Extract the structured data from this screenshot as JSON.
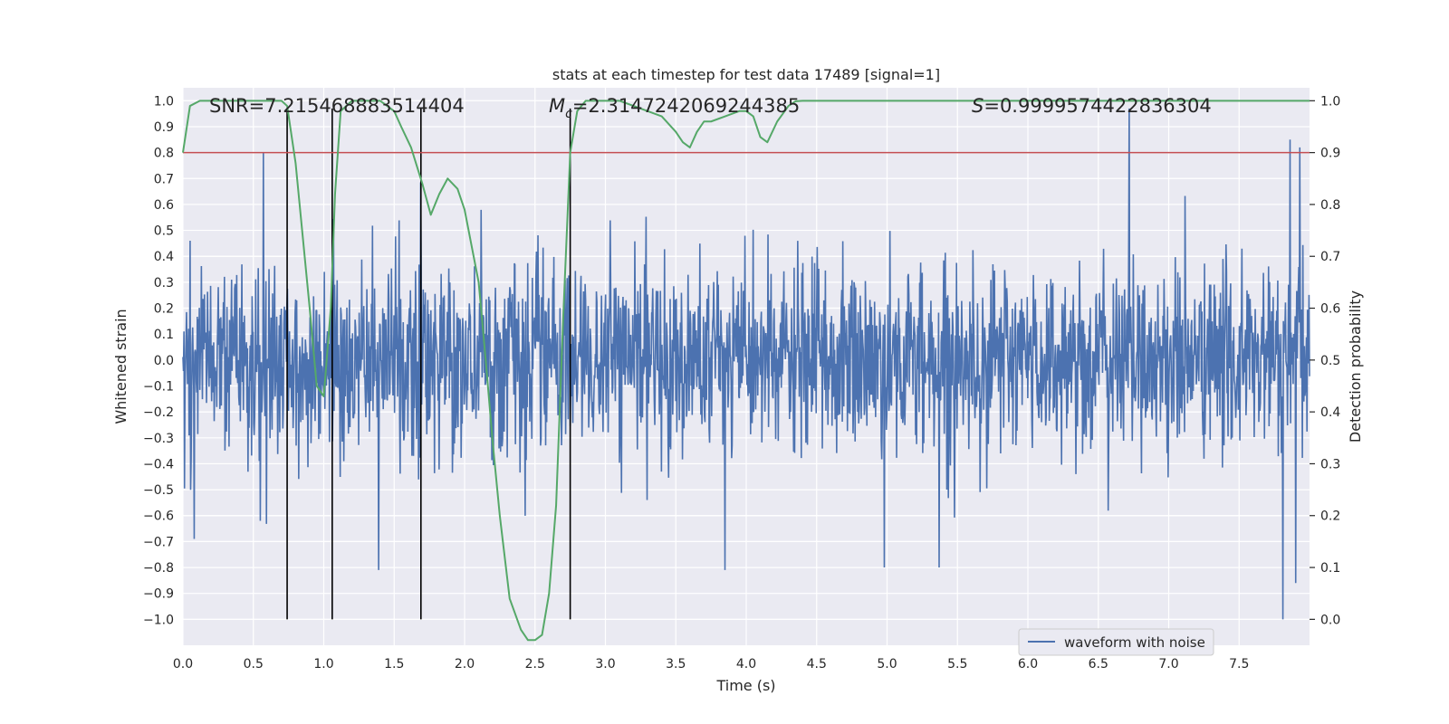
{
  "chart_data": {
    "type": "line",
    "title": "stats at each timestep for test data 17489 [signal=1]",
    "xlabel": "Time (s)",
    "ylabel_left": "Whitened strain",
    "ylabel_right": "Detection probability",
    "xlim": [
      0.0,
      8.0
    ],
    "ylim_left": [
      -1.1,
      1.05
    ],
    "ylim_right": [
      -0.05,
      1.025
    ],
    "x_ticks": [
      "0.0",
      "0.5",
      "1.0",
      "1.5",
      "2.0",
      "2.5",
      "3.0",
      "3.5",
      "4.0",
      "4.5",
      "5.0",
      "5.5",
      "6.0",
      "6.5",
      "7.0",
      "7.5"
    ],
    "y_ticks_left": [
      "1.0",
      "0.9",
      "0.8",
      "0.7",
      "0.6",
      "0.5",
      "0.4",
      "0.3",
      "0.2",
      "0.1",
      "0.0",
      "-0.1",
      "-0.2",
      "-0.3",
      "-0.4",
      "-0.5",
      "-0.6",
      "-0.7",
      "-0.8",
      "-0.9",
      "-1.0"
    ],
    "y_ticks_right": [
      "1.0",
      "0.9",
      "0.8",
      "0.7",
      "0.6",
      "0.5",
      "0.4",
      "0.3",
      "0.2",
      "0.1",
      "0.0"
    ],
    "annotations": {
      "snr": "SNR=7.215468883514404",
      "mc_symbol": "M",
      "mc_sub": "c",
      "mc_value": "=2.3147242069244385",
      "s_symbol": "S",
      "s_value": "=0.9999574422836304"
    },
    "legend": {
      "label": "waveform with noise",
      "placement": "lower-right"
    },
    "threshold": {
      "axis": "right",
      "value": 0.9,
      "color": "#c44e52"
    },
    "vlines": {
      "x": [
        0.74,
        1.06,
        1.69,
        2.75
      ],
      "y_range_left": [
        -1.0,
        0.97
      ],
      "color": "#000000"
    },
    "series": [
      {
        "name": "waveform with noise",
        "axis": "left",
        "color": "#4c72b0",
        "kind": "noise",
        "sigma": 0.18,
        "peaks": [
          {
            "x": 0.57,
            "y": 0.8
          },
          {
            "x": 0.55,
            "y": -0.62
          },
          {
            "x": 0.08,
            "y": -0.69
          },
          {
            "x": 1.39,
            "y": -0.81
          },
          {
            "x": 3.85,
            "y": -0.81
          },
          {
            "x": 4.98,
            "y": -0.8
          },
          {
            "x": 5.37,
            "y": -0.8
          },
          {
            "x": 6.72,
            "y": 0.97
          },
          {
            "x": 7.81,
            "y": -1.0
          },
          {
            "x": 7.86,
            "y": 0.85
          },
          {
            "x": 7.9,
            "y": -0.86
          },
          {
            "x": 7.93,
            "y": 0.82
          }
        ]
      },
      {
        "name": "",
        "axis": "right",
        "color": "#55a868",
        "kind": "line",
        "x": [
          0.0,
          0.05,
          0.12,
          0.3,
          0.5,
          0.6,
          0.7,
          0.74,
          0.8,
          0.9,
          0.95,
          1.0,
          1.05,
          1.08,
          1.12,
          1.2,
          1.3,
          1.4,
          1.45,
          1.5,
          1.55,
          1.62,
          1.7,
          1.76,
          1.82,
          1.88,
          1.95,
          2.0,
          2.05,
          2.1,
          2.15,
          2.2,
          2.25,
          2.32,
          2.4,
          2.45,
          2.5,
          2.55,
          2.6,
          2.65,
          2.7,
          2.75,
          2.8,
          2.86,
          2.9,
          3.0,
          3.1,
          3.2,
          3.3,
          3.4,
          3.5,
          3.55,
          3.6,
          3.65,
          3.7,
          3.75,
          3.85,
          3.95,
          4.0,
          4.05,
          4.1,
          4.15,
          4.22,
          4.3,
          4.35,
          4.4,
          4.5,
          4.7,
          5.0,
          5.3,
          5.7,
          6.0,
          6.5,
          7.0,
          7.5,
          8.0
        ],
        "y": [
          0.9,
          0.99,
          1.0,
          1.0,
          1.0,
          1.0,
          1.0,
          0.99,
          0.88,
          0.6,
          0.45,
          0.43,
          0.6,
          0.82,
          0.98,
          1.0,
          1.0,
          1.0,
          0.99,
          0.98,
          0.95,
          0.91,
          0.84,
          0.78,
          0.82,
          0.85,
          0.83,
          0.79,
          0.72,
          0.65,
          0.5,
          0.34,
          0.2,
          0.04,
          -0.02,
          -0.04,
          -0.04,
          -0.03,
          0.05,
          0.22,
          0.58,
          0.9,
          0.98,
          1.0,
          1.0,
          1.0,
          1.0,
          0.99,
          0.98,
          0.97,
          0.94,
          0.92,
          0.91,
          0.94,
          0.96,
          0.96,
          0.97,
          0.98,
          0.98,
          0.97,
          0.93,
          0.92,
          0.96,
          0.99,
          0.999,
          1.0,
          1.0,
          1.0,
          1.0,
          1.0,
          1.0,
          1.0,
          1.0,
          1.0,
          1.0,
          1.0
        ]
      }
    ]
  }
}
